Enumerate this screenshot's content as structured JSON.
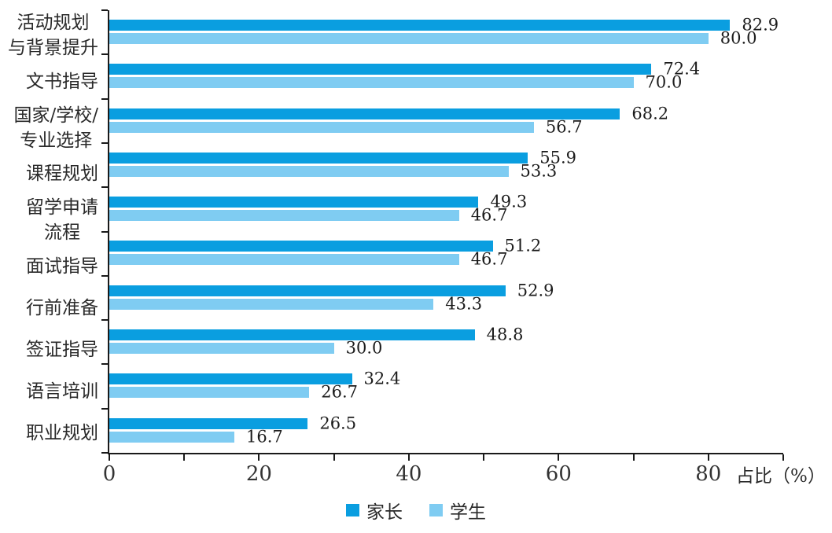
{
  "chart_data": {
    "type": "bar",
    "orientation": "horizontal",
    "title": "",
    "xlabel": "占比（%）",
    "ylabel": "",
    "xlim": [
      0,
      90
    ],
    "x_major_ticks": [
      0,
      20,
      40,
      60,
      80
    ],
    "x_minor_tick_step": 10,
    "grid": "off",
    "legend_position": "bottom-center",
    "value_label_format": "one_decimal",
    "categories": [
      [
        "活动规划",
        "与背景提升"
      ],
      [
        "文书指导"
      ],
      [
        "国家/学校/",
        "专业选择"
      ],
      [
        "课程规划"
      ],
      [
        "留学申请",
        "流程"
      ],
      [
        "面试指导"
      ],
      [
        "行前准备"
      ],
      [
        "签证指导"
      ],
      [
        "语言培训"
      ],
      [
        "职业规划"
      ]
    ],
    "series": [
      {
        "name": "家长",
        "color": "#0A9EE0",
        "values": [
          82.9,
          72.4,
          68.2,
          55.9,
          49.3,
          51.2,
          52.9,
          48.8,
          32.4,
          26.5
        ]
      },
      {
        "name": "学生",
        "color": "#7FCCF2",
        "values": [
          80.0,
          70.0,
          56.7,
          53.3,
          46.7,
          46.7,
          43.3,
          30.0,
          26.7,
          16.7
        ]
      }
    ]
  },
  "axis": {
    "tick_labels": [
      "0",
      "20",
      "40",
      "60",
      "80"
    ],
    "label": "占比（%）",
    "color": "#1a1a1a"
  },
  "legend": {
    "items": [
      {
        "label": "家长",
        "color": "#0A9EE0"
      },
      {
        "label": "学生",
        "color": "#7FCCF2"
      }
    ]
  }
}
